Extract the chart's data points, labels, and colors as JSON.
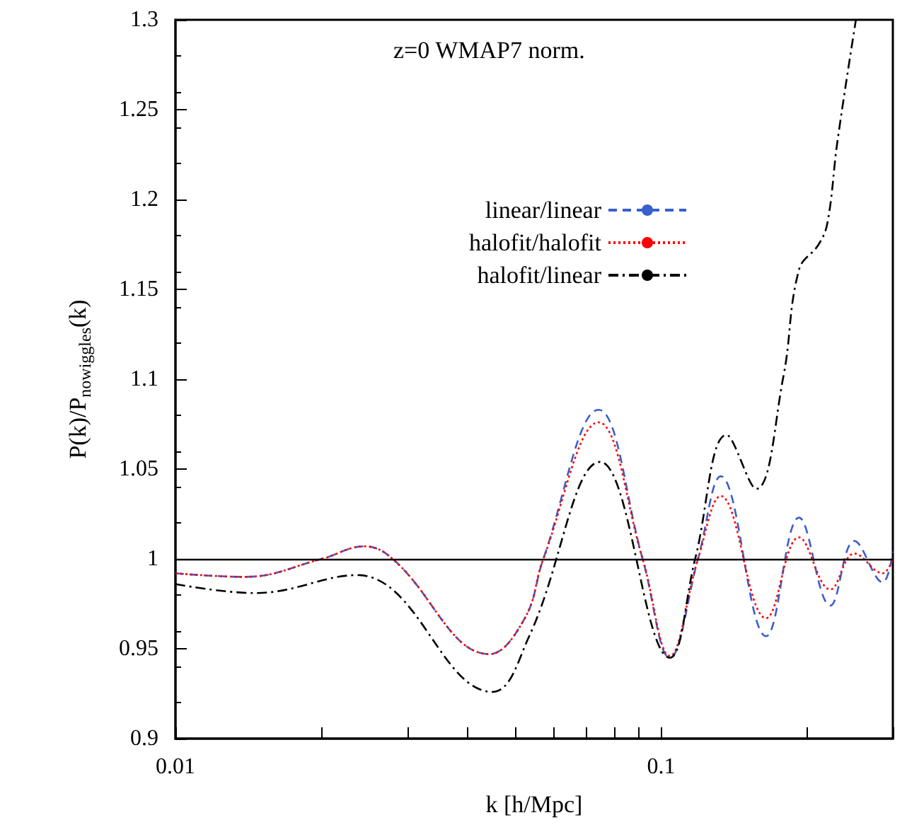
{
  "chart_data": {
    "type": "line",
    "xlabel": "k [h/Mpc]",
    "ylabel": "P(k)/P$_{nowiggles}$(k)",
    "annotations": [
      "z=0 WMAP7 norm."
    ],
    "log": "x",
    "xlim": [
      0.01,
      0.3
    ],
    "ylim": [
      0.9,
      1.3
    ],
    "xticks": [
      0.01,
      {
        "value": 0.02,
        "label": null
      },
      {
        "value": 0.03,
        "label": null
      },
      {
        "value": 0.04,
        "label": null
      },
      {
        "value": 0.05,
        "label": null
      },
      {
        "value": 0.06,
        "label": null
      },
      {
        "value": 0.07,
        "label": null
      },
      {
        "value": 0.08,
        "label": null
      },
      {
        "value": 0.09,
        "label": null
      },
      0.1,
      {
        "value": 0.2,
        "label": null
      },
      {
        "value": 0.3,
        "label": null
      }
    ],
    "yticks": [
      0.9,
      0.95,
      1,
      1.05,
      1.1,
      1.15,
      1.2,
      1.25,
      1.3
    ],
    "grid": false,
    "legend": "top right",
    "marker": "none",
    "ref_lines": [
      {
        "axis": "y",
        "value": 1,
        "color": "#000000"
      }
    ],
    "series": [
      {
        "name": "linear/linear",
        "color": "#3a5fcd",
        "line_style": "dashed",
        "x": [
          0.01,
          0.0139,
          0.02,
          0.0245,
          0.028,
          0.0443,
          0.0524,
          0.0572,
          0.0743,
          0.0916,
          0.1042,
          0.1191,
          0.1327,
          0.1645,
          0.1923,
          0.223,
          0.25,
          0.2858,
          0.3
        ],
        "values": [
          0.992,
          0.99,
          1.0,
          1.007,
          1.0,
          0.947,
          0.967,
          1.0,
          1.083,
          1.0,
          0.945,
          1.0,
          1.046,
          0.957,
          1.023,
          0.974,
          1.01,
          0.987,
          1.004
        ]
      },
      {
        "name": "halofit/halofit",
        "color": "#ff0000",
        "line_style": "dotted",
        "x": [
          0.01,
          0.0139,
          0.02,
          0.0245,
          0.028,
          0.0443,
          0.0524,
          0.0572,
          0.0743,
          0.0916,
          0.1042,
          0.1191,
          0.1327,
          0.1645,
          0.1923,
          0.223,
          0.25,
          0.2858,
          0.3
        ],
        "values": [
          0.992,
          0.99,
          1.0,
          1.007,
          1.0,
          0.947,
          0.967,
          1.0,
          1.076,
          1.0,
          0.946,
          1.0,
          1.035,
          0.967,
          1.012,
          0.983,
          1.003,
          0.992,
          1.0
        ]
      },
      {
        "name": "halofit/linear",
        "color": "#000000",
        "line_style": "dashdot",
        "x": [
          0.01,
          0.0146,
          0.0237,
          0.0449,
          0.0535,
          0.0749,
          0.1042,
          0.1175,
          0.1364,
          0.157,
          0.1784,
          0.1923,
          0.211,
          0.22,
          0.2306,
          0.2518
        ],
        "values": [
          0.986,
          0.981,
          0.991,
          0.926,
          0.957,
          1.054,
          0.945,
          1.0,
          1.069,
          1.039,
          1.101,
          1.161,
          1.175,
          1.187,
          1.232,
          1.3
        ]
      }
    ]
  }
}
